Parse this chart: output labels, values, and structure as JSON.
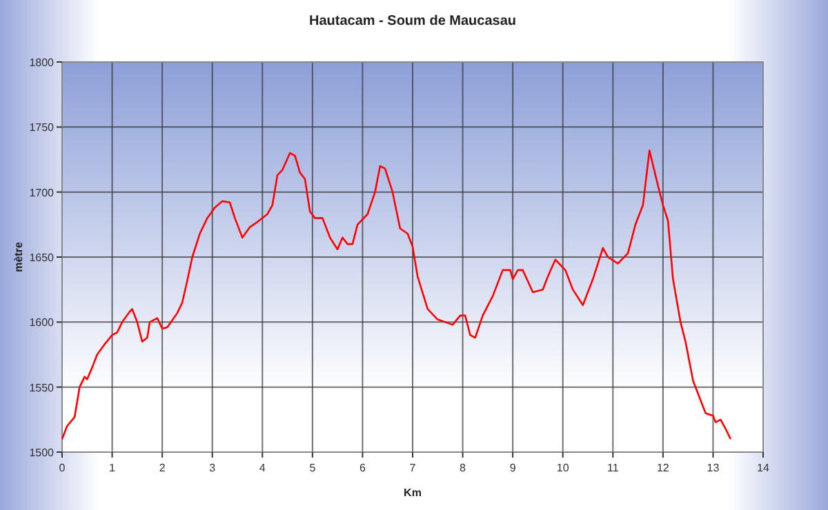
{
  "chart_data": {
    "type": "line",
    "title": "Hautacam - Soum de Maucasau",
    "xlabel": "Km",
    "ylabel": "mètre",
    "xlim": [
      0,
      14
    ],
    "xticks": [
      0,
      1,
      2,
      3,
      4,
      5,
      6,
      7,
      8,
      9,
      10,
      11,
      12,
      13,
      14
    ],
    "ylim": [
      1500,
      1800
    ],
    "yticks": [
      1500,
      1550,
      1600,
      1650,
      1700,
      1750,
      1800
    ],
    "grid": true,
    "marker": "none",
    "line_style": "solid",
    "series": [
      {
        "color": "#ff0000",
        "x": [
          0,
          0.1,
          0.25,
          0.35,
          0.45,
          0.5,
          0.6,
          0.7,
          0.85,
          1.0,
          1.1,
          1.2,
          1.35,
          1.4,
          1.5,
          1.6,
          1.7,
          1.75,
          1.9,
          2.0,
          2.1,
          2.3,
          2.4,
          2.5,
          2.6,
          2.75,
          2.9,
          3.05,
          3.2,
          3.35,
          3.45,
          3.6,
          3.75,
          3.9,
          4.1,
          4.2,
          4.3,
          4.4,
          4.55,
          4.65,
          4.75,
          4.85,
          4.95,
          5.05,
          5.2,
          5.35,
          5.5,
          5.6,
          5.7,
          5.8,
          5.9,
          6.1,
          6.25,
          6.35,
          6.45,
          6.6,
          6.75,
          6.9,
          7.0,
          7.1,
          7.3,
          7.5,
          7.8,
          7.95,
          8.05,
          8.15,
          8.25,
          8.4,
          8.6,
          8.8,
          8.95,
          9.0,
          9.1,
          9.2,
          9.4,
          9.6,
          9.7,
          9.85,
          10.05,
          10.2,
          10.4,
          10.6,
          10.8,
          10.9,
          11.1,
          11.3,
          11.45,
          11.6,
          11.73,
          11.9,
          12.0,
          12.1,
          12.2,
          12.35,
          12.45,
          12.6,
          12.75,
          12.85,
          13.0,
          13.05,
          13.15,
          13.25,
          13.35
        ],
        "values": [
          1510,
          1520,
          1527,
          1550,
          1558,
          1556,
          1565,
          1575,
          1583,
          1590,
          1592,
          1600,
          1608,
          1610,
          1600,
          1585,
          1588,
          1600,
          1603,
          1595,
          1596,
          1607,
          1615,
          1632,
          1650,
          1668,
          1680,
          1688,
          1693,
          1692,
          1680,
          1665,
          1673,
          1677,
          1683,
          1690,
          1713,
          1717,
          1730,
          1728,
          1715,
          1710,
          1685,
          1680,
          1680,
          1665,
          1656,
          1665,
          1660,
          1660,
          1675,
          1683,
          1700,
          1720,
          1718,
          1700,
          1672,
          1668,
          1658,
          1635,
          1610,
          1602,
          1598,
          1605,
          1605,
          1590,
          1588,
          1605,
          1620,
          1640,
          1640,
          1633,
          1640,
          1640,
          1623,
          1625,
          1635,
          1648,
          1640,
          1625,
          1613,
          1633,
          1657,
          1650,
          1645,
          1653,
          1675,
          1690,
          1732,
          1705,
          1690,
          1678,
          1633,
          1600,
          1585,
          1555,
          1540,
          1530,
          1528,
          1523,
          1525,
          1518,
          1510
        ]
      }
    ]
  }
}
